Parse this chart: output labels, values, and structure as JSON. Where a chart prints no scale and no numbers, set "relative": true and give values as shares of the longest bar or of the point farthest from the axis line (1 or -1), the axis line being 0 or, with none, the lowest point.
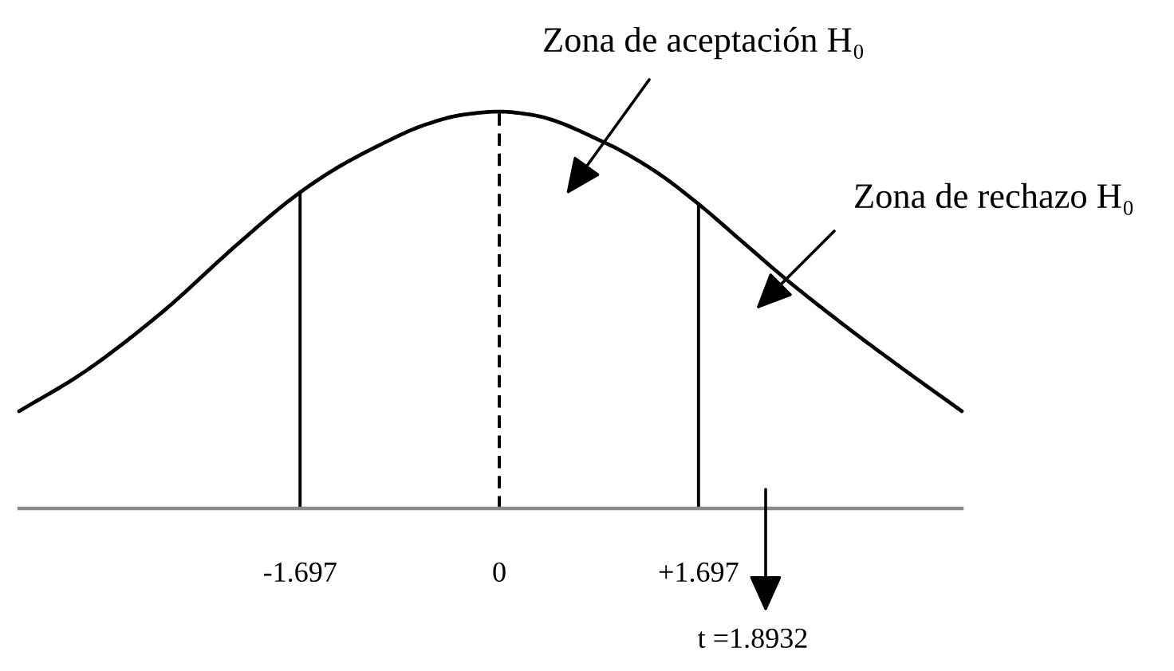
{
  "chart_data": {
    "type": "line",
    "relative": true,
    "x": [
      -4.09,
      -3.57,
      -2.89,
      -2.21,
      -1.74,
      -1.4,
      -1.09,
      -0.62,
      -0.31,
      0,
      0.27,
      0.91,
      1.32,
      1.68,
      2.09,
      2.44,
      2.99,
      3.45,
      3.94
    ],
    "series": [
      {
        "color": "#000000",
        "values": [
          0.245,
          0.337,
          0.49,
          0.671,
          0.787,
          0.855,
          0.905,
          0.968,
          0.992,
          1,
          0.992,
          0.92,
          0.851,
          0.771,
          0.667,
          0.578,
          0.45,
          0.349,
          0.245
        ]
      }
    ],
    "xlim": [
      -4.09,
      3.94
    ],
    "xticks": [
      {
        "value": -1.697,
        "label": "-1.697"
      },
      0,
      {
        "value": 1.697,
        "label": "+1.697"
      }
    ],
    "tick_labels": "x",
    "grid": false,
    "ref_lines": [
      {
        "axis": "x",
        "value": -1.697,
        "color": "#000000",
        "line_style": "solid"
      },
      {
        "axis": "x",
        "value": 0,
        "color": "#000000",
        "line_style": "dashed"
      },
      {
        "axis": "x",
        "value": 1.697,
        "color": "#000000",
        "line_style": "solid"
      }
    ],
    "annotations": [
      "Zona de aceptación H₀",
      "Zona de rechazo H₀",
      "t =1.8932"
    ]
  }
}
